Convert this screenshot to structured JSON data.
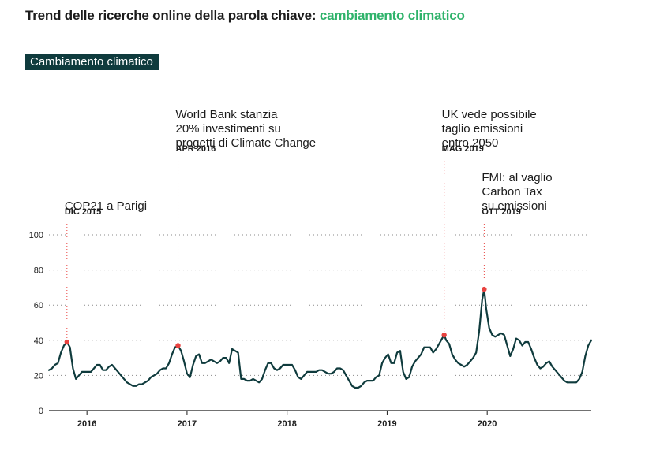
{
  "title": {
    "prefix": "Trend delle ricerche online della parola chiave:",
    "keyword": "cambiamento climatico"
  },
  "colors": {
    "line": "#0f3b3d",
    "keyword": "#2fb36b",
    "marker": "#e8423f",
    "legend_bg": "#0f3b3d"
  },
  "chart_data": {
    "type": "line",
    "title": "Trend delle ricerche online della parola chiave: cambiamento climatico",
    "xlabel": "",
    "ylabel": "",
    "ylim": [
      0,
      100
    ],
    "yticks": [
      0,
      20,
      40,
      60,
      80,
      100
    ],
    "xticks": [
      {
        "t": 2016.0,
        "label": "2016"
      },
      {
        "t": 2017.0,
        "label": "2017"
      },
      {
        "t": 2018.0,
        "label": "2018"
      },
      {
        "t": 2019.0,
        "label": "2019"
      },
      {
        "t": 2020.0,
        "label": "2020"
      }
    ],
    "grid": "horizontal dotted",
    "series": [
      {
        "name": "Cambiamento climatico",
        "points": [
          [
            2015.62,
            23
          ],
          [
            2015.65,
            24
          ],
          [
            2015.68,
            26
          ],
          [
            2015.71,
            27
          ],
          [
            2015.74,
            33
          ],
          [
            2015.77,
            37
          ],
          [
            2015.8,
            39
          ],
          [
            2015.83,
            36
          ],
          [
            2015.86,
            24
          ],
          [
            2015.89,
            18
          ],
          [
            2015.92,
            20
          ],
          [
            2015.95,
            22
          ],
          [
            2015.98,
            22
          ],
          [
            2016.01,
            22
          ],
          [
            2016.04,
            22
          ],
          [
            2016.07,
            24
          ],
          [
            2016.1,
            26
          ],
          [
            2016.13,
            26
          ],
          [
            2016.16,
            23
          ],
          [
            2016.19,
            23
          ],
          [
            2016.22,
            25
          ],
          [
            2016.25,
            26
          ],
          [
            2016.28,
            24
          ],
          [
            2016.31,
            22
          ],
          [
            2016.34,
            20
          ],
          [
            2016.37,
            18
          ],
          [
            2016.4,
            16
          ],
          [
            2016.43,
            15
          ],
          [
            2016.46,
            14
          ],
          [
            2016.49,
            14
          ],
          [
            2016.52,
            15
          ],
          [
            2016.55,
            15
          ],
          [
            2016.58,
            16
          ],
          [
            2016.61,
            17
          ],
          [
            2016.64,
            19
          ],
          [
            2016.67,
            20
          ],
          [
            2016.7,
            21
          ],
          [
            2016.73,
            23
          ],
          [
            2016.76,
            24
          ],
          [
            2016.79,
            24
          ],
          [
            2016.82,
            27
          ],
          [
            2016.85,
            32
          ],
          [
            2016.88,
            36
          ],
          [
            2016.91,
            37
          ],
          [
            2016.94,
            34
          ],
          [
            2016.97,
            28
          ],
          [
            2017.0,
            21
          ],
          [
            2017.03,
            19
          ],
          [
            2017.06,
            26
          ],
          [
            2017.09,
            31
          ],
          [
            2017.12,
            32
          ],
          [
            2017.15,
            27
          ],
          [
            2017.18,
            27
          ],
          [
            2017.21,
            28
          ],
          [
            2017.24,
            29
          ],
          [
            2017.27,
            28
          ],
          [
            2017.3,
            27
          ],
          [
            2017.33,
            28
          ],
          [
            2017.36,
            30
          ],
          [
            2017.39,
            30
          ],
          [
            2017.42,
            27
          ],
          [
            2017.45,
            35
          ],
          [
            2017.48,
            34
          ],
          [
            2017.51,
            33
          ],
          [
            2017.54,
            18
          ],
          [
            2017.57,
            18
          ],
          [
            2017.6,
            17
          ],
          [
            2017.63,
            17
          ],
          [
            2017.66,
            18
          ],
          [
            2017.69,
            17
          ],
          [
            2017.72,
            16
          ],
          [
            2017.75,
            18
          ],
          [
            2017.78,
            23
          ],
          [
            2017.81,
            27
          ],
          [
            2017.84,
            27
          ],
          [
            2017.87,
            24
          ],
          [
            2017.9,
            23
          ],
          [
            2017.93,
            24
          ],
          [
            2017.96,
            26
          ],
          [
            2017.99,
            26
          ],
          [
            2018.02,
            26
          ],
          [
            2018.05,
            26
          ],
          [
            2018.08,
            23
          ],
          [
            2018.11,
            19
          ],
          [
            2018.14,
            18
          ],
          [
            2018.17,
            20
          ],
          [
            2018.2,
            22
          ],
          [
            2018.23,
            22
          ],
          [
            2018.26,
            22
          ],
          [
            2018.29,
            22
          ],
          [
            2018.32,
            23
          ],
          [
            2018.35,
            23
          ],
          [
            2018.38,
            22
          ],
          [
            2018.41,
            21
          ],
          [
            2018.44,
            21
          ],
          [
            2018.47,
            22
          ],
          [
            2018.5,
            24
          ],
          [
            2018.53,
            24
          ],
          [
            2018.56,
            23
          ],
          [
            2018.59,
            20
          ],
          [
            2018.62,
            17
          ],
          [
            2018.65,
            14
          ],
          [
            2018.68,
            13
          ],
          [
            2018.71,
            13
          ],
          [
            2018.74,
            14
          ],
          [
            2018.77,
            16
          ],
          [
            2018.8,
            17
          ],
          [
            2018.83,
            17
          ],
          [
            2018.86,
            17
          ],
          [
            2018.89,
            19
          ],
          [
            2018.92,
            20
          ],
          [
            2018.95,
            27
          ],
          [
            2018.98,
            30
          ],
          [
            2019.01,
            32
          ],
          [
            2019.04,
            27
          ],
          [
            2019.07,
            27
          ],
          [
            2019.1,
            33
          ],
          [
            2019.13,
            34
          ],
          [
            2019.16,
            22
          ],
          [
            2019.19,
            18
          ],
          [
            2019.22,
            19
          ],
          [
            2019.25,
            25
          ],
          [
            2019.28,
            28
          ],
          [
            2019.31,
            30
          ],
          [
            2019.34,
            32
          ],
          [
            2019.37,
            36
          ],
          [
            2019.4,
            36
          ],
          [
            2019.43,
            36
          ],
          [
            2019.46,
            33
          ],
          [
            2019.49,
            35
          ],
          [
            2019.52,
            38
          ],
          [
            2019.55,
            41
          ],
          [
            2019.57,
            43
          ],
          [
            2019.59,
            40
          ],
          [
            2019.62,
            38
          ],
          [
            2019.65,
            32
          ],
          [
            2019.68,
            29
          ],
          [
            2019.71,
            27
          ],
          [
            2019.74,
            26
          ],
          [
            2019.77,
            25
          ],
          [
            2019.8,
            26
          ],
          [
            2019.83,
            28
          ],
          [
            2019.86,
            30
          ],
          [
            2019.89,
            33
          ],
          [
            2019.92,
            45
          ],
          [
            2019.95,
            63
          ],
          [
            2019.97,
            69
          ],
          [
            2019.99,
            58
          ],
          [
            2020.02,
            47
          ],
          [
            2020.05,
            43
          ],
          [
            2020.08,
            42
          ],
          [
            2020.11,
            43
          ],
          [
            2020.14,
            44
          ],
          [
            2020.17,
            43
          ],
          [
            2020.2,
            37
          ],
          [
            2020.23,
            31
          ],
          [
            2020.26,
            35
          ],
          [
            2020.29,
            41
          ],
          [
            2020.32,
            40
          ],
          [
            2020.35,
            37
          ],
          [
            2020.38,
            39
          ],
          [
            2020.41,
            39
          ],
          [
            2020.44,
            35
          ],
          [
            2020.47,
            30
          ],
          [
            2020.5,
            26
          ],
          [
            2020.53,
            24
          ],
          [
            2020.56,
            25
          ],
          [
            2020.59,
            27
          ],
          [
            2020.62,
            28
          ],
          [
            2020.65,
            25
          ],
          [
            2020.68,
            23
          ],
          [
            2020.71,
            21
          ],
          [
            2020.74,
            19
          ],
          [
            2020.77,
            17
          ],
          [
            2020.8,
            16
          ],
          [
            2020.83,
            16
          ],
          [
            2020.86,
            16
          ],
          [
            2020.89,
            16
          ],
          [
            2020.92,
            18
          ],
          [
            2020.95,
            22
          ],
          [
            2020.98,
            31
          ],
          [
            2021.01,
            37
          ],
          [
            2021.04,
            40
          ]
        ]
      }
    ],
    "annotations": [
      {
        "t": 2015.8,
        "value": 39,
        "lines": [
          "COP21 a Parigi"
        ],
        "date": "DIC 2015"
      },
      {
        "t": 2016.91,
        "value": 37,
        "lines": [
          "World Bank stanzia",
          "20% investimenti su",
          "progetti di Climate Change"
        ],
        "date": "APR 2016"
      },
      {
        "t": 2019.57,
        "value": 43,
        "lines": [
          "UK vede possibile",
          "taglio emissioni",
          "entro 2050"
        ],
        "date": "MAG 2019"
      },
      {
        "t": 2019.97,
        "value": 69,
        "lines": [
          "FMI: al vaglio",
          "Carbon Tax",
          "su emissioni"
        ],
        "date": "OTT 2019"
      }
    ],
    "legend": {
      "label": "Cambiamento climatico",
      "placement": "top-left"
    }
  }
}
